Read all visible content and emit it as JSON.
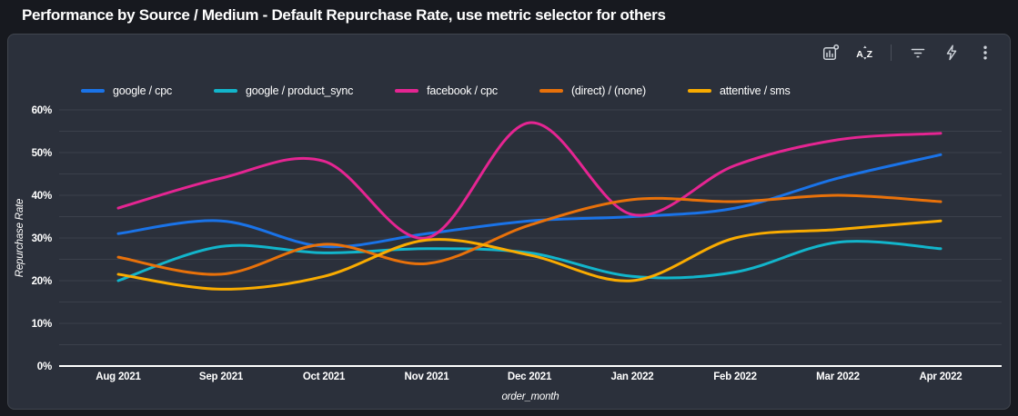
{
  "header": {
    "title": "Performance by Source / Medium - Default Repurchase Rate, use metric selector for others"
  },
  "toolbar": {
    "icons": [
      "chart-settings",
      "sort-az",
      "filter",
      "quick-actions",
      "more-options"
    ]
  },
  "colors": {
    "page_bg": "#17191f",
    "panel_bg": "#2b303b",
    "panel_border": "#41464f",
    "grid": "#3b404b",
    "baseline": "#ffffff",
    "icon": "#ced3da",
    "text": "#ffffff"
  },
  "chart_data": {
    "type": "line",
    "title": "Performance by Source / Medium - Default Repurchase Rate, use metric selector for others",
    "x_categories": [
      "Aug 2021",
      "Sep 2021",
      "Oct 2021",
      "Nov 2021",
      "Dec 2021",
      "Jan 2022",
      "Feb 2022",
      "Mar 2022",
      "Apr 2022"
    ],
    "series": [
      {
        "name": "google / cpc",
        "color": "#1a73e8",
        "values": [
          31,
          34,
          28,
          31,
          34,
          35,
          37,
          44,
          49.5
        ]
      },
      {
        "name": "google / product_sync",
        "color": "#12b5cb",
        "values": [
          20,
          28,
          26.5,
          27.5,
          26.5,
          21,
          22,
          29,
          27.5
        ]
      },
      {
        "name": "facebook / cpc",
        "color": "#e52592",
        "values": [
          37,
          44,
          48,
          30,
          57,
          35.5,
          47,
          53,
          54.5
        ]
      },
      {
        "name": "(direct) / (none)",
        "color": "#e8710a",
        "values": [
          25.5,
          21.5,
          28.5,
          24,
          33,
          39,
          38.5,
          40,
          38.5
        ]
      },
      {
        "name": "attentive / sms",
        "color": "#f9ab00",
        "values": [
          21.5,
          18,
          21,
          29.5,
          26,
          20,
          30,
          32,
          34
        ]
      }
    ],
    "xlabel": "order_month",
    "ylabel": "Repurchase Rate",
    "ylim": [
      0,
      60
    ],
    "ytick_major_step": 10,
    "ytick_minor_step": 5,
    "ytick_suffix": "%",
    "grid": true,
    "legend_position": "top-left",
    "line_style": "smooth"
  }
}
